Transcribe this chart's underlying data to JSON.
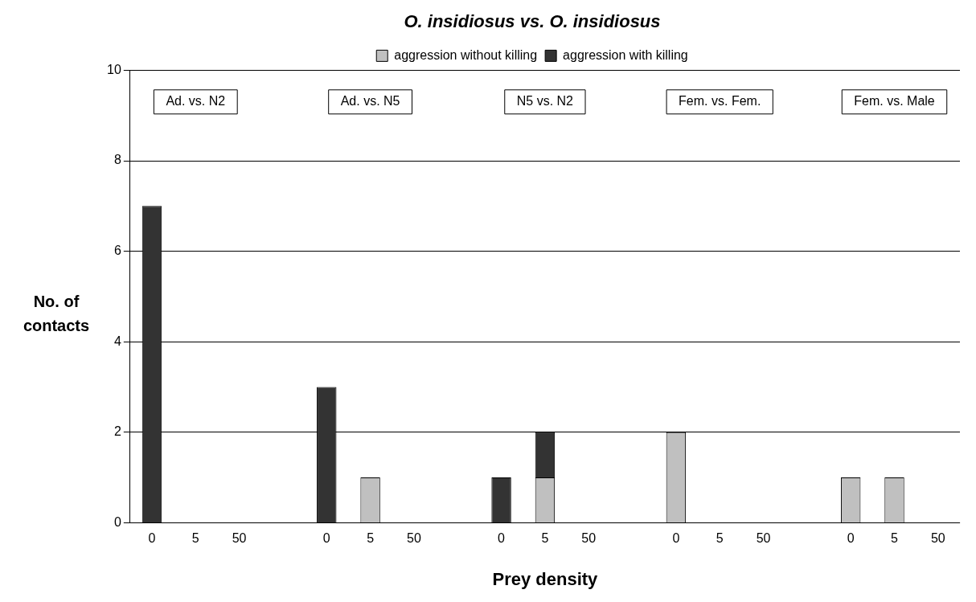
{
  "chart_data": {
    "type": "bar",
    "title": "O. insidiosus vs. O. insidiosus",
    "xlabel": "Prey density",
    "ylabel": "No. of contacts",
    "categories": [
      "0",
      "5",
      "50",
      null,
      "0",
      "5",
      "50",
      null,
      "0",
      "5",
      "50",
      null,
      "0",
      "5",
      "50",
      null,
      "0",
      "5",
      "50"
    ],
    "series": [
      {
        "name": "aggression without killing",
        "color": "#c0c0c0",
        "values": [
          0,
          0,
          0,
          null,
          0,
          1,
          0,
          null,
          0,
          1,
          0,
          null,
          2,
          0,
          0,
          null,
          1,
          1,
          0
        ]
      },
      {
        "name": "aggression with killing",
        "color": "#333333",
        "values": [
          7,
          0,
          0,
          null,
          3,
          0,
          0,
          null,
          1,
          1,
          0,
          null,
          0,
          0,
          0,
          null,
          0,
          0,
          0
        ]
      }
    ],
    "stacked": true,
    "ylim": [
      0,
      10
    ],
    "yticks": [
      0,
      2,
      4,
      6,
      8,
      10
    ],
    "grid": "y",
    "legend": "top",
    "annotations": [
      "Ad. vs. N2",
      "Ad. vs. N5",
      "N5 vs. N2",
      "Fem. vs. Fem.",
      "Fem. vs. Male"
    ]
  }
}
